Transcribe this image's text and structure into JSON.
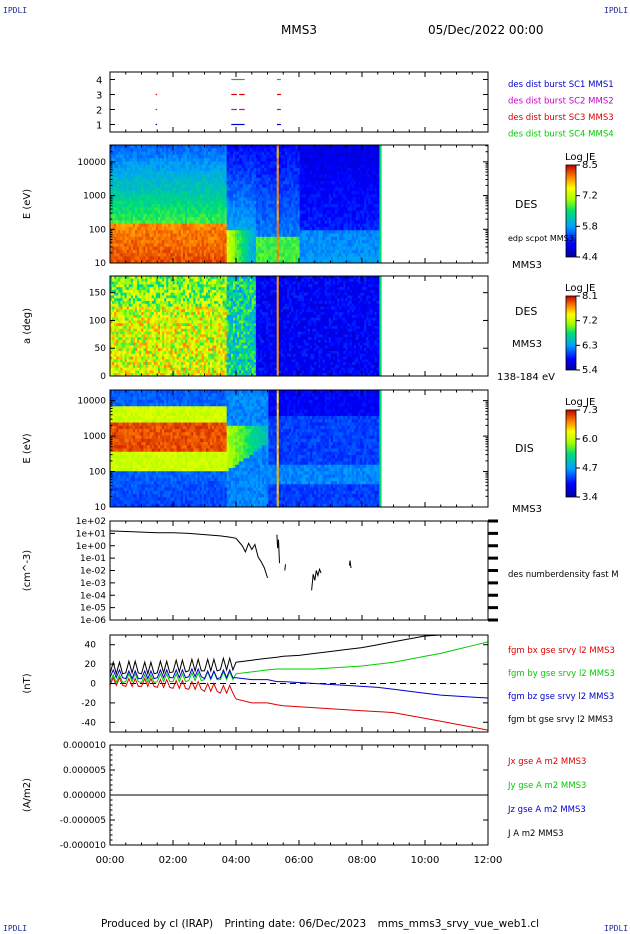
{
  "header": {
    "corner_left": "IPDLI",
    "corner_right": "IPDLI",
    "corner_bottom_left": "IPDLI",
    "corner_bottom_right": "IPDLI",
    "title": "MMS3",
    "date": "05/Dec/2022 00:00"
  },
  "footer": {
    "produced": "Produced by cl (IRAP)",
    "printing": "Printing date: 06/Dec/2023",
    "file": "mms_mms3_srvy_vue_web1.cl"
  },
  "colors": {
    "blue": "#0000cc",
    "magenta": "#cc00cc",
    "red": "#dd0000",
    "green": "#00cc00",
    "black": "#000000"
  },
  "chart_data": [
    {
      "type": "scatter",
      "panel": "burst-availability",
      "yticks": [
        "4",
        "3",
        "2",
        "1"
      ],
      "ylim": [
        0.5,
        4.5
      ],
      "legend": [
        {
          "name": "des dist burst SC1 MMS1",
          "color": "#0000cc",
          "level": 1
        },
        {
          "name": "des dist burst SC2 MMS2",
          "color": "#cc00cc",
          "level": 2
        },
        {
          "name": "des dist burst SC3 MMS3",
          "color": "#dd0000",
          "level": 3
        },
        {
          "name": "des dist burst SC4 MMS4",
          "color": "#00cc00",
          "level": 4
        }
      ],
      "segments": [
        {
          "level": 4,
          "color": "#00cc00",
          "x": [
            3.85,
            4.25
          ]
        },
        {
          "level": 4,
          "color": "#00cc00",
          "x": [
            5.3,
            5.4
          ]
        },
        {
          "level": 3,
          "color": "#dd0000",
          "x": [
            1.45,
            1.47
          ]
        },
        {
          "level": 3,
          "color": "#dd0000",
          "x": [
            3.85,
            4.0
          ]
        },
        {
          "level": 3,
          "color": "#dd0000",
          "x": [
            4.1,
            4.25
          ]
        },
        {
          "level": 3,
          "color": "#dd0000",
          "x": [
            5.3,
            5.4
          ]
        },
        {
          "level": 2,
          "color": "#cc00cc",
          "x": [
            1.45,
            1.47
          ]
        },
        {
          "level": 2,
          "color": "#cc00cc",
          "x": [
            3.85,
            4.0
          ]
        },
        {
          "level": 2,
          "color": "#cc00cc",
          "x": [
            4.1,
            4.25
          ]
        },
        {
          "level": 2,
          "color": "#cc00cc",
          "x": [
            5.3,
            5.4
          ]
        },
        {
          "level": 1,
          "color": "#0000cc",
          "x": [
            1.45,
            1.47
          ]
        },
        {
          "level": 1,
          "color": "#0000cc",
          "x": [
            3.85,
            4.25
          ]
        },
        {
          "level": 1,
          "color": "#0000cc",
          "x": [
            5.3,
            5.4
          ]
        }
      ]
    },
    {
      "type": "heatmap",
      "panel": "des-energy-spectrogram",
      "ylabel": "E (eV)",
      "yticks": [
        "10000",
        "1000",
        "100",
        "10"
      ],
      "ylim_log10": [
        1,
        4.5
      ],
      "instrument": "DES",
      "annotation": "edp scpot MMS3",
      "spacecraft": "MMS3",
      "colorbar": {
        "title": "Log JE",
        "ticks": [
          "8.5",
          "7.2",
          "5.8",
          "4.4"
        ],
        "range": [
          4.4,
          8.5
        ]
      },
      "data_end_hour": 8.6
    },
    {
      "type": "heatmap",
      "panel": "des-pitch-angle",
      "ylabel": "a (deg)",
      "yticks": [
        "150",
        "100",
        "50",
        "0"
      ],
      "ylim": [
        0,
        180
      ],
      "instrument": "DES",
      "spacecraft": "MMS3",
      "energy_range": "138-184 eV",
      "colorbar": {
        "title": "Log JE",
        "ticks": [
          "8.1",
          "7.2",
          "6.3",
          "5.4"
        ],
        "range": [
          5.4,
          8.1
        ]
      },
      "data_end_hour": 8.6
    },
    {
      "type": "heatmap",
      "panel": "dis-energy-spectrogram",
      "ylabel": "E (eV)",
      "yticks": [
        "10000",
        "1000",
        "100",
        "10"
      ],
      "ylim_log10": [
        1,
        4.3
      ],
      "instrument": "DIS",
      "spacecraft": "MMS3",
      "colorbar": {
        "title": "Log JE",
        "ticks": [
          "7.3",
          "6.0",
          "4.7",
          "3.4"
        ],
        "range": [
          3.4,
          7.3
        ]
      },
      "data_end_hour": 8.6
    },
    {
      "type": "line",
      "panel": "density",
      "ylabel": "(cm^-3)",
      "yticks": [
        "1e+02",
        "1e+01",
        "1e+00",
        "1e-01",
        "1e-02",
        "1e-03",
        "1e-04",
        "1e-05",
        "1e-06"
      ],
      "ylim_log10": [
        -6,
        2
      ],
      "series": [
        {
          "name": "des numberdensity fast M",
          "color": "#000000",
          "x": [
            0,
            0.5,
            1.0,
            1.5,
            2.0,
            2.5,
            3.0,
            3.5,
            3.8,
            4.0,
            4.1,
            4.2,
            4.3,
            4.4,
            4.5,
            4.6,
            4.7,
            4.8,
            4.9,
            5.0
          ],
          "y": [
            1.2,
            1.15,
            1.1,
            1.05,
            1.05,
            1.0,
            0.9,
            0.8,
            0.7,
            0.6,
            0.3,
            0.0,
            -0.5,
            0.2,
            -0.3,
            0.1,
            -0.9,
            -1.3,
            -1.8,
            -2.6
          ]
        },
        {
          "name": "",
          "color": "#000000",
          "x": [
            5.3,
            5.32,
            5.35,
            5.38
          ],
          "y": [
            0.9,
            -0.2,
            0.5,
            -1.4
          ]
        },
        {
          "name": "",
          "color": "#000000",
          "x": [
            5.55,
            5.57
          ],
          "y": [
            -2.0,
            -1.5
          ]
        },
        {
          "name": "",
          "color": "#000000",
          "x": [
            6.4,
            6.45,
            6.5,
            6.55,
            6.6,
            6.65,
            6.7
          ],
          "y": [
            -3.6,
            -2.3,
            -2.8,
            -2.0,
            -2.4,
            -1.9,
            -2.2
          ]
        },
        {
          "name": "",
          "color": "#000000",
          "x": [
            7.6,
            7.62,
            7.65
          ],
          "y": [
            -1.6,
            -1.2,
            -1.8
          ]
        }
      ]
    },
    {
      "type": "line",
      "panel": "magnetic-field",
      "ylabel": "(nT)",
      "yticks": [
        "40",
        "20",
        "0",
        "-20",
        "-40"
      ],
      "ylim": [
        -50,
        50
      ],
      "zero_line": true,
      "x": [
        0,
        0.5,
        1.0,
        1.5,
        2.0,
        2.5,
        3.0,
        3.5,
        4.0,
        4.5,
        5.0,
        5.3,
        5.5,
        6.0,
        6.5,
        7.0,
        7.5,
        8.0,
        8.5,
        9.0,
        9.5,
        10.0,
        10.5,
        11.0,
        11.5,
        12.0
      ],
      "series": [
        {
          "name": "fgm bx gse srvy l2 MMS3",
          "color": "#dd0000",
          "y": [
            2,
            1,
            1,
            0,
            -1,
            -2,
            -4,
            -6,
            -16,
            -20,
            -20,
            -22,
            -23,
            -24,
            -25,
            -26,
            -27,
            -28,
            -29,
            -30,
            -33,
            -36,
            -39,
            -42,
            -45,
            -48
          ]
        },
        {
          "name": "fgm by gse srvy l2 MMS3",
          "color": "#00cc00",
          "y": [
            5,
            6,
            5,
            6,
            6,
            7,
            8,
            8,
            10,
            12,
            14,
            15,
            15,
            15,
            15,
            16,
            17,
            18,
            20,
            22,
            25,
            28,
            31,
            35,
            39,
            43
          ]
        },
        {
          "name": "fgm bz gse srvy l2 MMS3",
          "color": "#0000cc",
          "y": [
            10,
            9,
            9,
            10,
            10,
            11,
            9,
            10,
            6,
            4,
            4,
            2,
            2,
            1,
            0,
            -1,
            -2,
            -3,
            -4,
            -6,
            -8,
            -10,
            -12,
            -13,
            -14,
            -15
          ]
        },
        {
          "name": "fgm bt gse srvy l2 MMS3",
          "color": "#000000",
          "y": [
            16,
            17,
            16,
            17,
            18,
            19,
            19,
            20,
            22,
            24,
            26,
            27,
            28,
            29,
            31,
            33,
            35,
            37,
            40,
            43,
            46,
            49,
            50,
            50,
            50,
            50
          ]
        }
      ]
    },
    {
      "type": "line",
      "panel": "current-density",
      "ylabel": "(A/m2)",
      "yticks": [
        "0.000010",
        "0.000005",
        "0.000000",
        "-0.000005",
        "-0.000010"
      ],
      "ylim": [
        -1e-05,
        1e-05
      ],
      "x": [
        0,
        4,
        8,
        12
      ],
      "series": [
        {
          "name": "Jx gse A m2 MMS3",
          "color": "#dd0000",
          "y": [
            0,
            0,
            0,
            0
          ]
        },
        {
          "name": "Jy gse A m2 MMS3",
          "color": "#00cc00",
          "y": [
            0,
            0,
            0,
            0
          ]
        },
        {
          "name": "Jz gse A m2 MMS3",
          "color": "#0000cc",
          "y": [
            0,
            0,
            0,
            0
          ]
        },
        {
          "name": "J A m2 MMS3",
          "color": "#000000",
          "y": [
            0,
            0,
            0,
            0
          ]
        }
      ]
    }
  ],
  "time_axis": {
    "xlim_hours": [
      0,
      12
    ],
    "ticks": [
      "00:00",
      "02:00",
      "04:00",
      "06:00",
      "08:00",
      "10:00",
      "12:00"
    ]
  }
}
